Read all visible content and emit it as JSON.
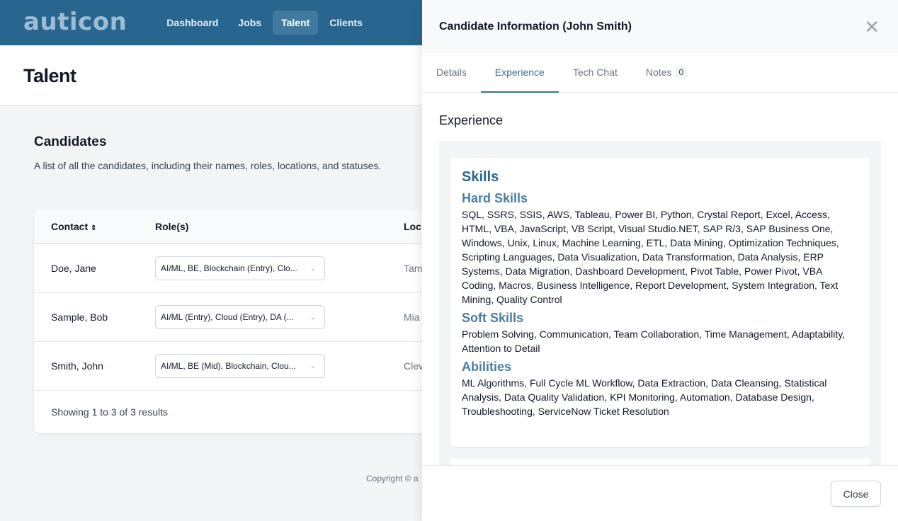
{
  "nav": {
    "logo": "auticon",
    "items": [
      "Dashboard",
      "Jobs",
      "Talent",
      "Clients"
    ],
    "active": "Talent"
  },
  "page": {
    "title": "Talent"
  },
  "candidates": {
    "title": "Candidates",
    "description": "A list of all the candidates, including their names, roles, locations, and statuses.",
    "columns": [
      "Contact",
      "Role(s)",
      "Loc"
    ],
    "rows": [
      {
        "contact": "Doe, Jane",
        "roles": "AI/ML, BE, Blockchain (Entry), Clo...",
        "location": "Tam"
      },
      {
        "contact": "Sample, Bob",
        "roles": "AI/ML (Entry), Cloud (Entry), DA (...",
        "location": "Mia"
      },
      {
        "contact": "Smith, John",
        "roles": "AI/ML, BE (Mid), Blockchain, Clou...",
        "location": "Clev"
      }
    ],
    "footer": "Showing 1 to 3 of 3 results"
  },
  "copyright": "Copyright © a",
  "drawer": {
    "title": "Candidate Information (John Smith)",
    "tabs": [
      "Details",
      "Experience",
      "Tech Chat",
      "Notes"
    ],
    "active_tab": "Experience",
    "notes_count": "0",
    "section_title": "Experience",
    "skills_title": "Skills",
    "hard_title": "Hard Skills",
    "hard": "SQL, SSRS, SSIS, AWS, Tableau, Power BI, Python, Crystal Report, Excel, Access, HTML, VBA, JavaScript, VB Script, Visual Studio.NET, SAP R/3, SAP Business One, Windows, Unix, Linux, Machine Learning, ETL, Data Mining, Optimization Techniques, Scripting Languages, Data Visualization, Data Transformation, Data Analysis, ERP Systems, Data Migration, Dashboard Development, Pivot Table, Power Pivot, VBA Coding, Macros, Business Intelligence, Report Development, System Integration, Text Mining, Quality Control",
    "soft_title": "Soft Skills",
    "soft": "Problem Solving, Communication, Team Collaboration, Time Management, Adaptability, Attention to Detail",
    "abilities_title": "Abilities",
    "abilities": "ML Algorithms, Full Cycle ML Workflow, Data Extraction, Data Cleansing, Statistical Analysis, Data Quality Validation, KPI Monitoring, Automation, Database Design, Troubleshooting, ServiceNow Ticket Resolution",
    "close_label": "Close"
  },
  "colors": {
    "nav": "#29668f",
    "accent": "#3b7096"
  }
}
